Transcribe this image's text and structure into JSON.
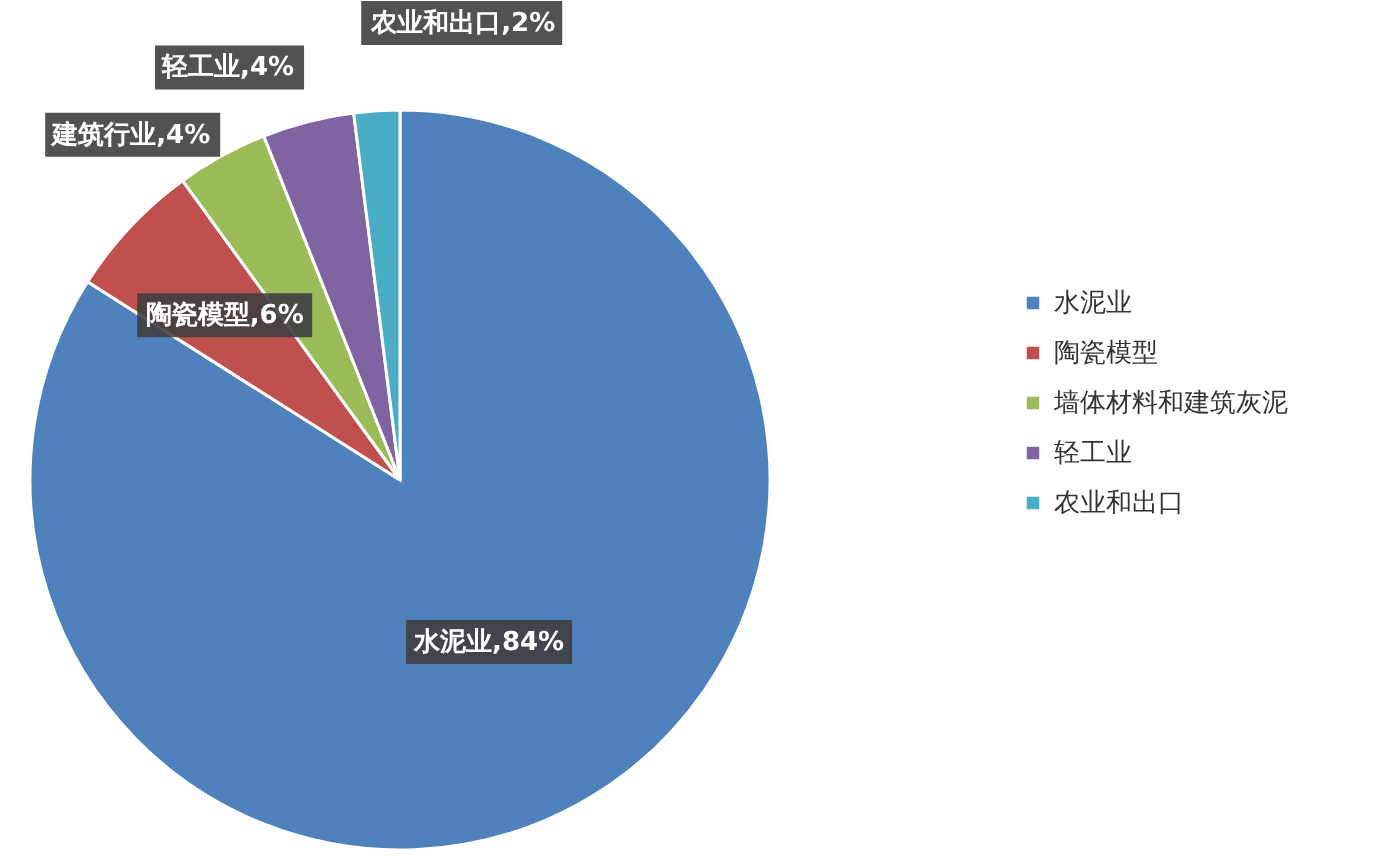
{
  "chart_data": {
    "type": "pie",
    "categories": [
      "水泥业",
      "陶瓷模型",
      "墙体材料和建筑灰泥",
      "轻工业",
      "农业和出口"
    ],
    "values": [
      84,
      6,
      4,
      4,
      2
    ],
    "colors": [
      "#4f81bd",
      "#c0504d",
      "#9bbb59",
      "#8064a2",
      "#4bacc6"
    ],
    "value_labels": [
      "水泥业,84%",
      "陶瓷模型,6%",
      "建筑行业,4%",
      "轻工业,4%",
      "农业和出口,2%"
    ],
    "legend": "right"
  }
}
